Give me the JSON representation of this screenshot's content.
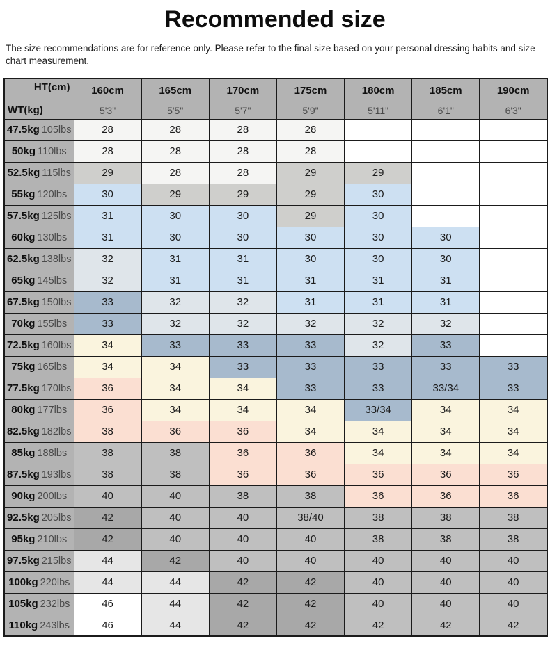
{
  "title": "Recommended size",
  "disclaimer": "The size recommendations are for reference only. Please refer to the final size based on your personal dressing habits and size chart measurement.",
  "palette": {
    "white": "#ffffff",
    "offwhite": "#f5f5f3",
    "ltgray": "#cfcfcc",
    "blue": "#cde0f2",
    "ltblue": "#dfe5ea",
    "slate": "#a7bacd",
    "cream": "#faf4de",
    "pink": "#fbdfd2",
    "gray": "#bfbfbf",
    "dkgray": "#a8a8a8",
    "pale": "#e6e6e6",
    "header": "#b3b3b3"
  },
  "table": {
    "corner": {
      "ht": "HT(cm)",
      "wt": "WT(kg)"
    },
    "columns": [
      {
        "cm": "160cm",
        "ft": "5'3\""
      },
      {
        "cm": "165cm",
        "ft": "5'5\""
      },
      {
        "cm": "170cm",
        "ft": "5'7\""
      },
      {
        "cm": "175cm",
        "ft": "5'9\""
      },
      {
        "cm": "180cm",
        "ft": "5'11\""
      },
      {
        "cm": "185cm",
        "ft": "6'1\""
      },
      {
        "cm": "190cm",
        "ft": "6'3\""
      }
    ],
    "rows": [
      {
        "kg": "47.5kg",
        "lbs": "105lbs",
        "cells": [
          [
            "28",
            "offwhite"
          ],
          [
            "28",
            "offwhite"
          ],
          [
            "28",
            "offwhite"
          ],
          [
            "28",
            "offwhite"
          ],
          [
            "",
            "white"
          ],
          [
            "",
            "white"
          ],
          [
            "",
            "white"
          ]
        ]
      },
      {
        "kg": "50kg",
        "lbs": "110lbs",
        "cells": [
          [
            "28",
            "offwhite"
          ],
          [
            "28",
            "offwhite"
          ],
          [
            "28",
            "offwhite"
          ],
          [
            "28",
            "offwhite"
          ],
          [
            "",
            "white"
          ],
          [
            "",
            "white"
          ],
          [
            "",
            "white"
          ]
        ]
      },
      {
        "kg": "52.5kg",
        "lbs": "115lbs",
        "cells": [
          [
            "29",
            "ltgray"
          ],
          [
            "28",
            "offwhite"
          ],
          [
            "28",
            "offwhite"
          ],
          [
            "29",
            "ltgray"
          ],
          [
            "29",
            "ltgray"
          ],
          [
            "",
            "white"
          ],
          [
            "",
            "white"
          ]
        ]
      },
      {
        "kg": "55kg",
        "lbs": "120lbs",
        "cells": [
          [
            "30",
            "blue"
          ],
          [
            "29",
            "ltgray"
          ],
          [
            "29",
            "ltgray"
          ],
          [
            "29",
            "ltgray"
          ],
          [
            "30",
            "blue"
          ],
          [
            "",
            "white"
          ],
          [
            "",
            "white"
          ]
        ]
      },
      {
        "kg": "57.5kg",
        "lbs": "125lbs",
        "cells": [
          [
            "31",
            "blue"
          ],
          [
            "30",
            "blue"
          ],
          [
            "30",
            "blue"
          ],
          [
            "29",
            "ltgray"
          ],
          [
            "30",
            "blue"
          ],
          [
            "",
            "white"
          ],
          [
            "",
            "white"
          ]
        ]
      },
      {
        "kg": "60kg",
        "lbs": "130lbs",
        "cells": [
          [
            "31",
            "blue"
          ],
          [
            "30",
            "blue"
          ],
          [
            "30",
            "blue"
          ],
          [
            "30",
            "blue"
          ],
          [
            "30",
            "blue"
          ],
          [
            "30",
            "blue"
          ],
          [
            "",
            "white"
          ]
        ]
      },
      {
        "kg": "62.5kg",
        "lbs": "138lbs",
        "cells": [
          [
            "32",
            "ltblue"
          ],
          [
            "31",
            "blue"
          ],
          [
            "31",
            "blue"
          ],
          [
            "30",
            "blue"
          ],
          [
            "30",
            "blue"
          ],
          [
            "30",
            "blue"
          ],
          [
            "",
            "white"
          ]
        ]
      },
      {
        "kg": "65kg",
        "lbs": "145lbs",
        "cells": [
          [
            "32",
            "ltblue"
          ],
          [
            "31",
            "blue"
          ],
          [
            "31",
            "blue"
          ],
          [
            "31",
            "blue"
          ],
          [
            "31",
            "blue"
          ],
          [
            "31",
            "blue"
          ],
          [
            "",
            "white"
          ]
        ]
      },
      {
        "kg": "67.5kg",
        "lbs": "150lbs",
        "cells": [
          [
            "33",
            "slate"
          ],
          [
            "32",
            "ltblue"
          ],
          [
            "32",
            "ltblue"
          ],
          [
            "31",
            "blue"
          ],
          [
            "31",
            "blue"
          ],
          [
            "31",
            "blue"
          ],
          [
            "",
            "white"
          ]
        ]
      },
      {
        "kg": "70kg",
        "lbs": "155lbs",
        "cells": [
          [
            "33",
            "slate"
          ],
          [
            "32",
            "ltblue"
          ],
          [
            "32",
            "ltblue"
          ],
          [
            "32",
            "ltblue"
          ],
          [
            "32",
            "ltblue"
          ],
          [
            "32",
            "ltblue"
          ],
          [
            "",
            "white"
          ]
        ]
      },
      {
        "kg": "72.5kg",
        "lbs": "160lbs",
        "cells": [
          [
            "34",
            "cream"
          ],
          [
            "33",
            "slate"
          ],
          [
            "33",
            "slate"
          ],
          [
            "33",
            "slate"
          ],
          [
            "32",
            "ltblue"
          ],
          [
            "33",
            "slate"
          ],
          [
            "",
            "white"
          ]
        ]
      },
      {
        "kg": "75kg",
        "lbs": "165lbs",
        "cells": [
          [
            "34",
            "cream"
          ],
          [
            "34",
            "cream"
          ],
          [
            "33",
            "slate"
          ],
          [
            "33",
            "slate"
          ],
          [
            "33",
            "slate"
          ],
          [
            "33",
            "slate"
          ],
          [
            "33",
            "slate"
          ]
        ]
      },
      {
        "kg": "77.5kg",
        "lbs": "170lbs",
        "cells": [
          [
            "36",
            "pink"
          ],
          [
            "34",
            "cream"
          ],
          [
            "34",
            "cream"
          ],
          [
            "33",
            "slate"
          ],
          [
            "33",
            "slate"
          ],
          [
            "33/34",
            "slate"
          ],
          [
            "33",
            "slate"
          ]
        ]
      },
      {
        "kg": "80kg",
        "lbs": "177lbs",
        "cells": [
          [
            "36",
            "pink"
          ],
          [
            "34",
            "cream"
          ],
          [
            "34",
            "cream"
          ],
          [
            "34",
            "cream"
          ],
          [
            "33/34",
            "slate"
          ],
          [
            "34",
            "cream"
          ],
          [
            "34",
            "cream"
          ]
        ]
      },
      {
        "kg": "82.5kg",
        "lbs": "182lbs",
        "cells": [
          [
            "38",
            "pink"
          ],
          [
            "36",
            "pink"
          ],
          [
            "36",
            "pink"
          ],
          [
            "34",
            "cream"
          ],
          [
            "34",
            "cream"
          ],
          [
            "34",
            "cream"
          ],
          [
            "34",
            "cream"
          ]
        ]
      },
      {
        "kg": "85kg",
        "lbs": "188lbs",
        "cells": [
          [
            "38",
            "gray"
          ],
          [
            "38",
            "gray"
          ],
          [
            "36",
            "pink"
          ],
          [
            "36",
            "pink"
          ],
          [
            "34",
            "cream"
          ],
          [
            "34",
            "cream"
          ],
          [
            "34",
            "cream"
          ]
        ]
      },
      {
        "kg": "87.5kg",
        "lbs": "193lbs",
        "cells": [
          [
            "38",
            "gray"
          ],
          [
            "38",
            "gray"
          ],
          [
            "36",
            "pink"
          ],
          [
            "36",
            "pink"
          ],
          [
            "36",
            "pink"
          ],
          [
            "36",
            "pink"
          ],
          [
            "36",
            "pink"
          ]
        ]
      },
      {
        "kg": "90kg",
        "lbs": "200lbs",
        "cells": [
          [
            "40",
            "gray"
          ],
          [
            "40",
            "gray"
          ],
          [
            "38",
            "gray"
          ],
          [
            "38",
            "gray"
          ],
          [
            "36",
            "pink"
          ],
          [
            "36",
            "pink"
          ],
          [
            "36",
            "pink"
          ]
        ]
      },
      {
        "kg": "92.5kg",
        "lbs": "205lbs",
        "cells": [
          [
            "42",
            "dkgray"
          ],
          [
            "40",
            "gray"
          ],
          [
            "40",
            "gray"
          ],
          [
            "38/40",
            "gray"
          ],
          [
            "38",
            "gray"
          ],
          [
            "38",
            "gray"
          ],
          [
            "38",
            "gray"
          ]
        ]
      },
      {
        "kg": "95kg",
        "lbs": "210lbs",
        "cells": [
          [
            "42",
            "dkgray"
          ],
          [
            "40",
            "gray"
          ],
          [
            "40",
            "gray"
          ],
          [
            "40",
            "gray"
          ],
          [
            "38",
            "gray"
          ],
          [
            "38",
            "gray"
          ],
          [
            "38",
            "gray"
          ]
        ]
      },
      {
        "kg": "97.5kg",
        "lbs": "215lbs",
        "cells": [
          [
            "44",
            "pale"
          ],
          [
            "42",
            "dkgray"
          ],
          [
            "40",
            "gray"
          ],
          [
            "40",
            "gray"
          ],
          [
            "40",
            "gray"
          ],
          [
            "40",
            "gray"
          ],
          [
            "40",
            "gray"
          ]
        ]
      },
      {
        "kg": "100kg",
        "lbs": "220lbs",
        "cells": [
          [
            "44",
            "pale"
          ],
          [
            "44",
            "pale"
          ],
          [
            "42",
            "dkgray"
          ],
          [
            "42",
            "dkgray"
          ],
          [
            "40",
            "gray"
          ],
          [
            "40",
            "gray"
          ],
          [
            "40",
            "gray"
          ]
        ]
      },
      {
        "kg": "105kg",
        "lbs": "232lbs",
        "cells": [
          [
            "46",
            "white"
          ],
          [
            "44",
            "pale"
          ],
          [
            "42",
            "dkgray"
          ],
          [
            "42",
            "dkgray"
          ],
          [
            "40",
            "gray"
          ],
          [
            "40",
            "gray"
          ],
          [
            "40",
            "gray"
          ]
        ]
      },
      {
        "kg": "110kg",
        "lbs": "243lbs",
        "cells": [
          [
            "46",
            "white"
          ],
          [
            "44",
            "pale"
          ],
          [
            "42",
            "dkgray"
          ],
          [
            "42",
            "dkgray"
          ],
          [
            "42",
            "gray"
          ],
          [
            "42",
            "gray"
          ],
          [
            "42",
            "gray"
          ]
        ]
      }
    ]
  }
}
